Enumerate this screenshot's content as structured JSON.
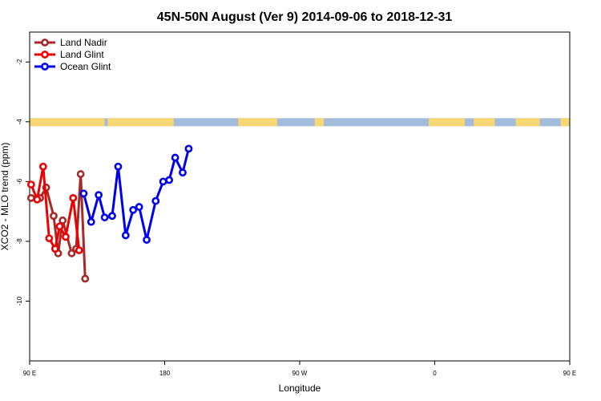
{
  "chart_data": {
    "type": "line",
    "title": "45N-50N August (Ver 9)   2014-09-06 to 2018-12-31",
    "xlabel": "Longitude",
    "ylabel": "XCO2 - MLO trend (ppm)",
    "xlim": [
      90,
      450
    ],
    "ylim": [
      -12,
      -1
    ],
    "x_ticks": [
      {
        "value": 90,
        "label": "90 E"
      },
      {
        "value": 180,
        "label": "180"
      },
      {
        "value": 270,
        "label": "90 W"
      },
      {
        "value": 360,
        "label": "0"
      },
      {
        "value": 450,
        "label": "90 E"
      },
      {
        "value": 540,
        "label": "180"
      }
    ],
    "y_ticks": [
      -2,
      -4,
      -6,
      -8,
      -10
    ],
    "grid": false,
    "legend_position": "top-left",
    "map_strip": {
      "y_range": [
        -4.15,
        -3.88
      ],
      "ocean_color": "#a4bcdc",
      "land_color": "#f7d774"
    },
    "series": [
      {
        "name": "Land Nadir",
        "color": "#a52a2a",
        "x": [
          91,
          97,
          101,
          106,
          109,
          112,
          118,
          121,
          124,
          127,
          131,
          134,
          136
        ],
        "y": [
          -6.55,
          -6.55,
          -6.2,
          -7.15,
          -8.4,
          -7.3,
          -8.4,
          -8.25,
          -5.75,
          -9.25,
          null,
          null,
          null
        ]
      },
      {
        "name": "Land Glint",
        "color": "#ee0000",
        "x": [
          91,
          95,
          99,
          103,
          107,
          110,
          114,
          119,
          123,
          126
        ],
        "y": [
          -6.1,
          -6.6,
          -5.5,
          -7.9,
          -8.25,
          -7.5,
          -7.85,
          -6.55,
          -8.3,
          null
        ]
      },
      {
        "name": "Ocean Glint",
        "color": "#0000ee",
        "x": [
          126,
          131,
          136,
          140,
          145,
          149,
          154,
          159,
          163,
          168,
          174,
          179,
          183,
          187,
          192,
          196
        ],
        "y": [
          -6.4,
          -7.35,
          -6.45,
          -7.2,
          -7.15,
          -5.5,
          -7.8,
          -6.95,
          -6.85,
          -7.95,
          -6.65,
          -6.0,
          -5.95,
          -5.2,
          -5.7,
          -4.9
        ]
      }
    ]
  }
}
